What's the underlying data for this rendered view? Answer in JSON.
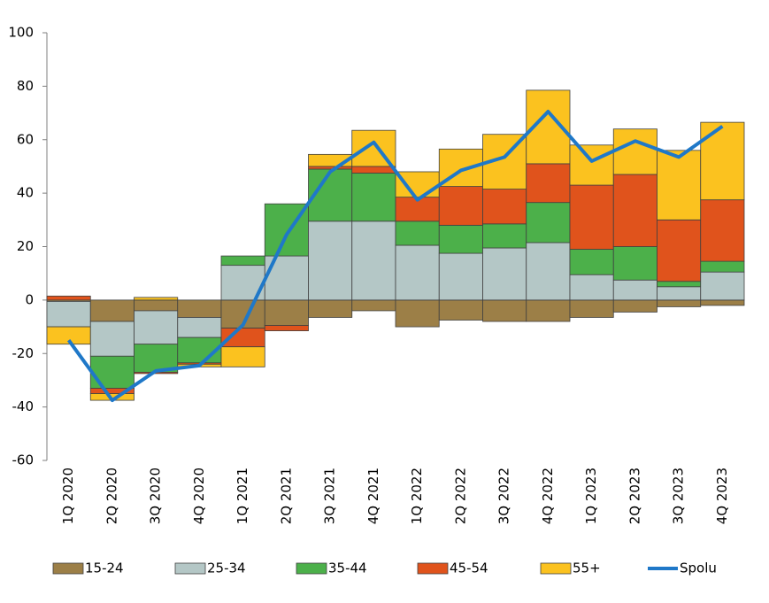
{
  "chart_data": {
    "type": "bar",
    "stacked": true,
    "categories": [
      "1Q 2020",
      "2Q 2020",
      "3Q 2020",
      "4Q 2020",
      "1Q 2021",
      "2Q 2021",
      "3Q 2021",
      "4Q 2021",
      "1Q 2022",
      "2Q 2022",
      "3Q 2022",
      "4Q 2022",
      "1Q 2023",
      "2Q 2023",
      "3Q 2023",
      "4Q 2023"
    ],
    "series": [
      {
        "name": "15-24",
        "color": "#9c7f47",
        "values": [
          -0.5,
          -8,
          -4,
          -6.5,
          -10.5,
          -9.5,
          -6.5,
          -4,
          -10,
          -7.5,
          -8,
          -8,
          -6.5,
          -4.5,
          -2.5,
          -2
        ]
      },
      {
        "name": "25-34",
        "color": "#b4c7c6",
        "values": [
          -9.5,
          -13,
          -12.5,
          -7.5,
          13,
          16.5,
          29.5,
          29.5,
          20.5,
          17.5,
          19.5,
          21.5,
          9.5,
          7.5,
          5,
          10.5
        ]
      },
      {
        "name": "35-44",
        "color": "#4cb04a",
        "values": [
          0,
          -12,
          -10.5,
          -9.5,
          3.5,
          19.5,
          19.5,
          18,
          9,
          10.5,
          9,
          15,
          9.5,
          12.5,
          2,
          4
        ]
      },
      {
        "name": "45-54",
        "color": "#e0531c",
        "values": [
          1.5,
          -2,
          -0.5,
          -0.5,
          -7,
          -2,
          1,
          2.5,
          9,
          14.5,
          13,
          14.5,
          24,
          27,
          23,
          23
        ]
      },
      {
        "name": "55+",
        "color": "#fbc21f",
        "values": [
          -6.5,
          -2.5,
          1,
          -1,
          -7.5,
          0,
          4.5,
          13.5,
          9.5,
          14,
          20.5,
          27.5,
          15,
          17,
          26,
          29
        ]
      },
      {
        "name": "Spolu",
        "color": "#1f78c8",
        "type": "line",
        "values": [
          -15,
          -37.5,
          -26.5,
          -24.5,
          -9.3,
          24.5,
          48,
          59,
          37.5,
          48.5,
          53.5,
          70.5,
          52,
          59.5,
          53.5,
          65
        ]
      }
    ],
    "ylim": [
      -60,
      100
    ],
    "yticks": [
      -60,
      -40,
      -20,
      0,
      20,
      40,
      60,
      80,
      100
    ],
    "grid": false,
    "legend": "bottom"
  }
}
